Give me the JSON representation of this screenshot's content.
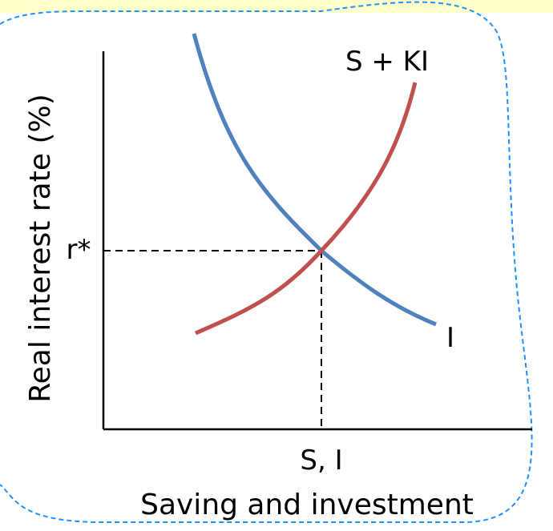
{
  "diagram": {
    "axes": {
      "y_label": "Real interest rate (%)",
      "x_label": "Saving and investment"
    },
    "curves": {
      "investment": {
        "label": "I",
        "color": "#4F81BD"
      },
      "saving_plus_ki": {
        "label": "S + KI",
        "color": "#C0504D"
      }
    },
    "equilibrium": {
      "rate_label": "r*",
      "quantity_label": "S, I"
    },
    "frame": {
      "border_color": "#1E90FF",
      "band_color": "#FFFFCC"
    }
  }
}
